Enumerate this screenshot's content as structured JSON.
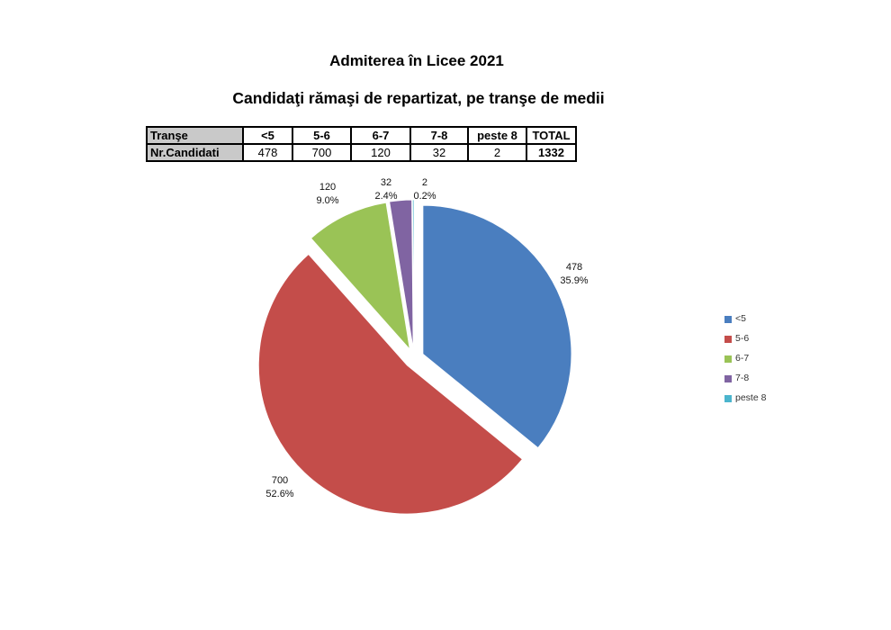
{
  "titles": {
    "main": "Admiterea în Licee 2021",
    "subtitle": "Candidaţi rămaşi de repartizat, pe tranşe de medii"
  },
  "table": {
    "header_row": [
      "Tranşe",
      "<5",
      "5-6",
      "6-7",
      "7-8",
      "peste 8",
      "TOTAL"
    ],
    "data_row": [
      "Nr.Candidati",
      "478",
      "700",
      "120",
      "32",
      "2",
      "1332"
    ]
  },
  "chart_data": {
    "type": "pie",
    "title": "Admiterea în Licee 2021",
    "subtitle": "Candidaţi rămaşi de repartizat, pe tranşe de medii",
    "categories": [
      "<5",
      "5-6",
      "6-7",
      "7-8",
      "peste 8"
    ],
    "values": [
      478,
      700,
      120,
      32,
      2
    ],
    "total": 1332,
    "slices": [
      {
        "label": "<5",
        "value": 478,
        "pct": "35.9%",
        "color": "#4a7ebf"
      },
      {
        "label": "5-6",
        "value": 700,
        "pct": "52.6%",
        "color": "#c44d4a"
      },
      {
        "label": "6-7",
        "value": 120,
        "pct": "9.0%",
        "color": "#9ac356"
      },
      {
        "label": "7-8",
        "value": 32,
        "pct": "2.4%",
        "color": "#8064a2"
      },
      {
        "label": "peste 8",
        "value": 2,
        "pct": "0.2%",
        "color": "#4bb5cd"
      }
    ],
    "exploded": true,
    "start_angle_deg": 0,
    "direction": "clockwise",
    "legend_position": "right",
    "data_labels": "value and percent, outside end"
  }
}
